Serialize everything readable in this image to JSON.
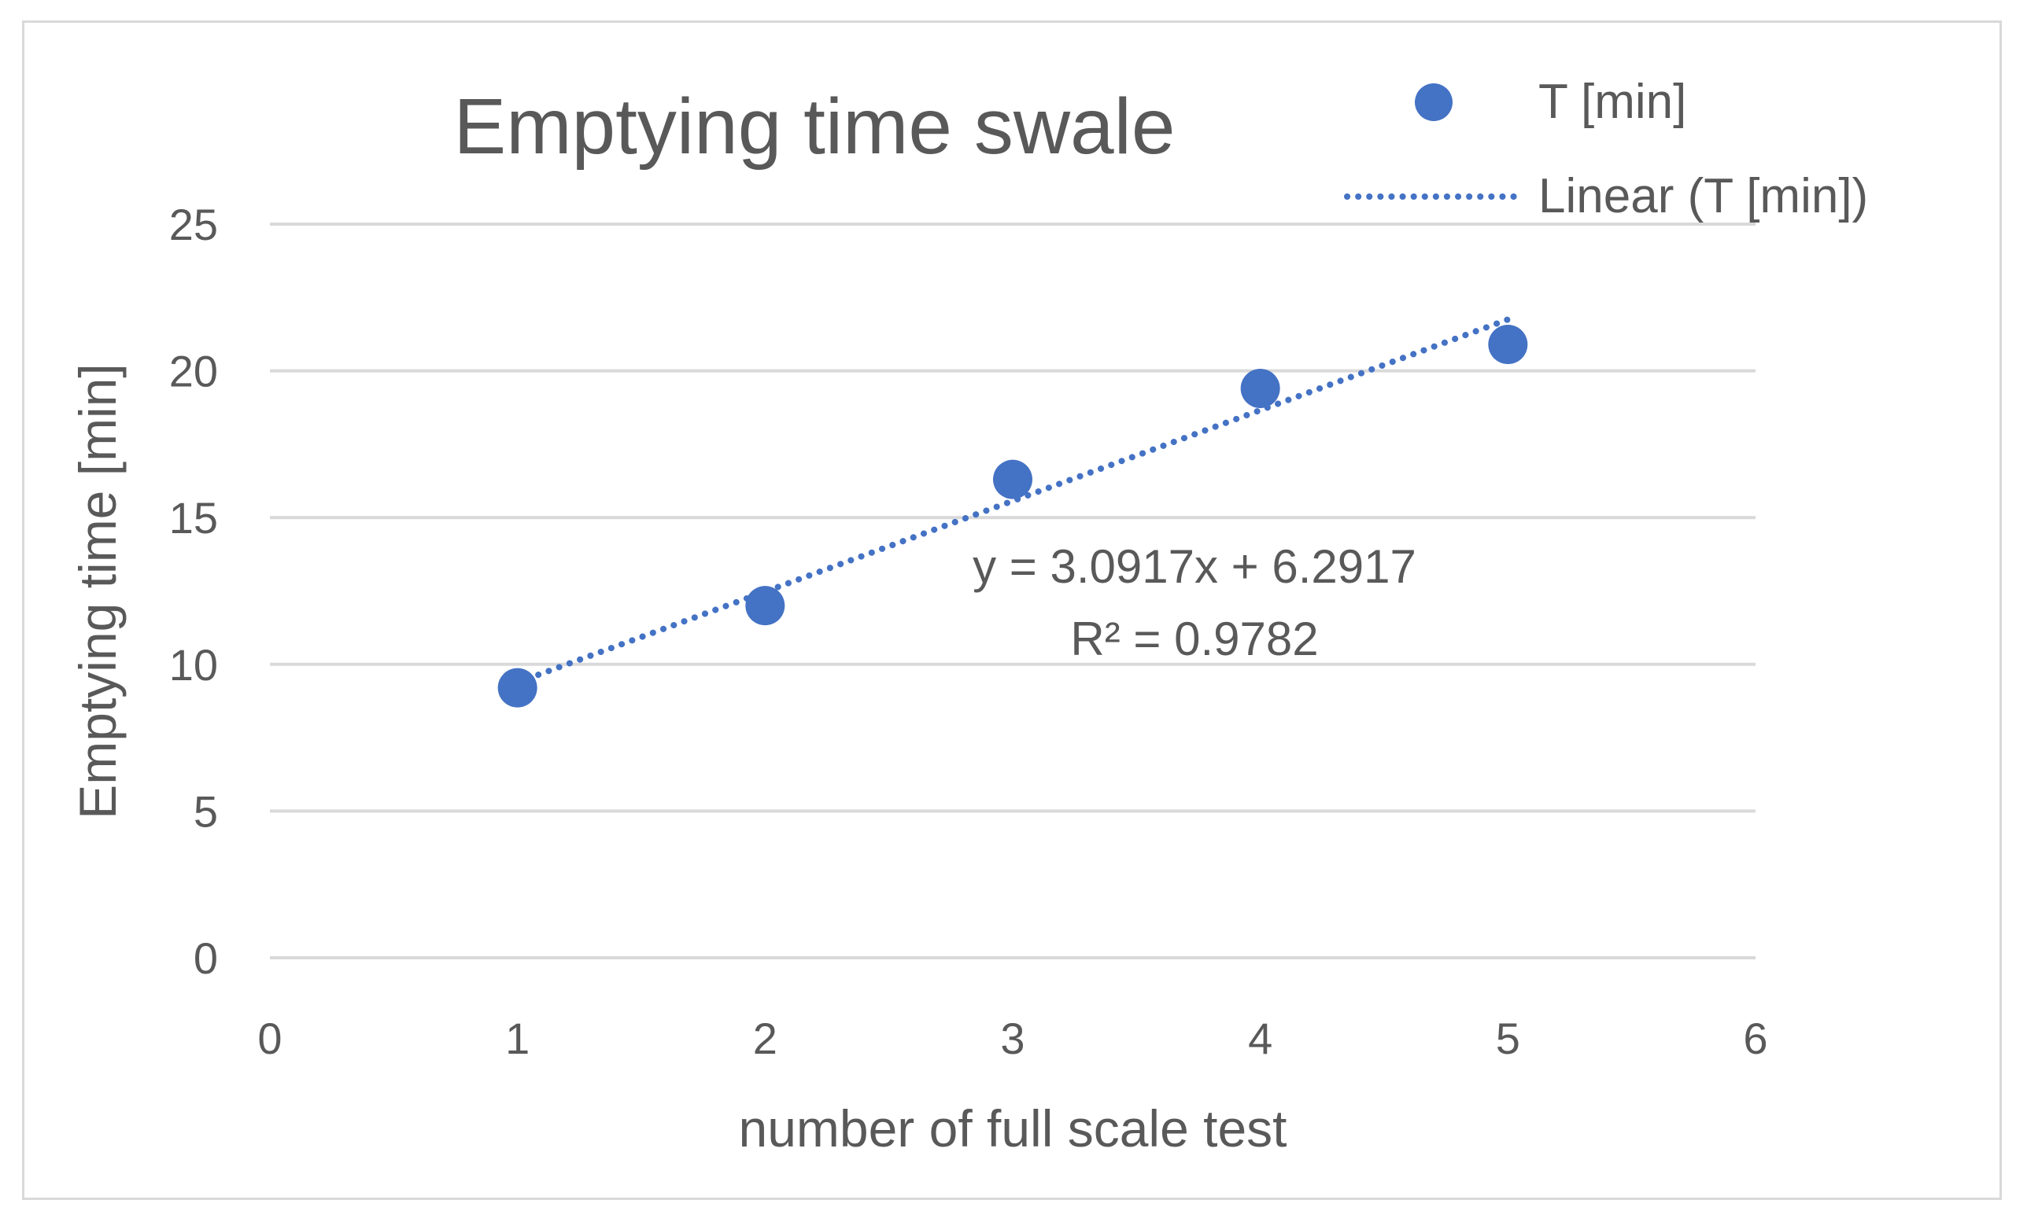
{
  "chart_data": {
    "type": "scatter",
    "title": "Emptying time swale",
    "xlabel": "number of full scale test",
    "ylabel": "Emptying time [min]",
    "xlim": [
      0,
      6
    ],
    "ylim": [
      0,
      25
    ],
    "xticks": [
      "0",
      "1",
      "2",
      "3",
      "4",
      "5",
      "6"
    ],
    "yticks": [
      "0",
      "5",
      "10",
      "15",
      "20",
      "25"
    ],
    "grid": "horizontal",
    "legend_position": "top-right",
    "series": [
      {
        "name": "T [min]",
        "x": [
          1,
          2,
          3,
          4,
          5
        ],
        "values": [
          9.2,
          12.0,
          16.3,
          19.4,
          20.9
        ],
        "color": "#4472c4",
        "marker": "circle"
      }
    ],
    "trendline": {
      "name": "Linear (T [min])",
      "type": "linear",
      "slope": 3.0917,
      "intercept": 6.2917,
      "x_range": [
        1,
        5
      ],
      "style": "dotted",
      "color": "#4472c4",
      "equation_label": "y = 3.0917x + 6.2917",
      "r2_label": "R² = 0.9782"
    }
  }
}
